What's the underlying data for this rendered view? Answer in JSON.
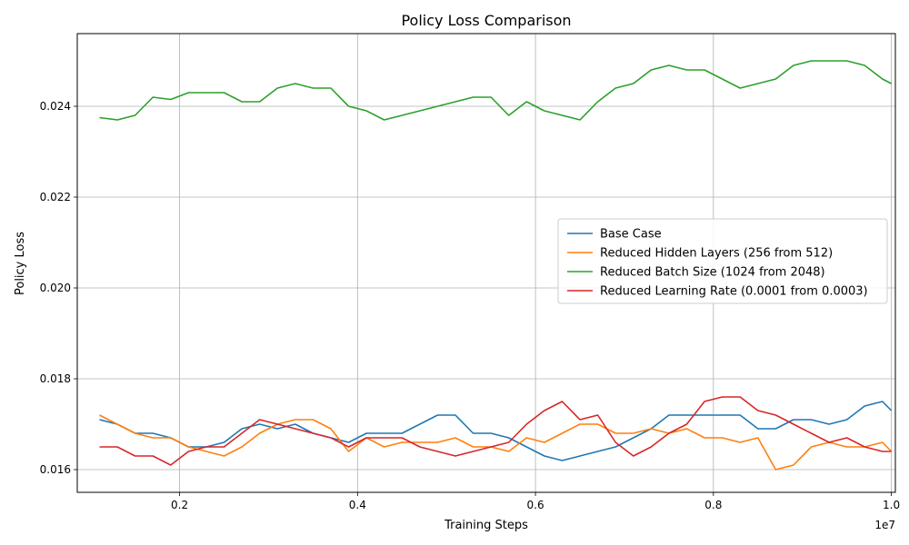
{
  "chart_data": {
    "type": "line",
    "title": "Policy Loss Comparison",
    "xlabel": "Training Steps",
    "ylabel": "Policy Loss",
    "x_offset_label": "1e7",
    "xlim": [
      0.085,
      1.0045
    ],
    "ylim": [
      0.0155,
      0.0256
    ],
    "x_ticks": [
      0.2,
      0.4,
      0.6,
      0.8,
      1.0
    ],
    "x_tick_labels": [
      "0.2",
      "0.4",
      "0.6",
      "0.8",
      "1.0"
    ],
    "y_ticks": [
      0.016,
      0.018,
      0.02,
      0.022,
      0.024
    ],
    "y_tick_labels": [
      "0.016",
      "0.018",
      "0.020",
      "0.022",
      "0.024"
    ],
    "grid": true,
    "legend_position": "center-right",
    "x": [
      0.11,
      0.13,
      0.15,
      0.17,
      0.19,
      0.21,
      0.23,
      0.25,
      0.27,
      0.29,
      0.31,
      0.33,
      0.35,
      0.37,
      0.39,
      0.41,
      0.43,
      0.45,
      0.47,
      0.49,
      0.51,
      0.53,
      0.55,
      0.57,
      0.59,
      0.61,
      0.63,
      0.65,
      0.67,
      0.69,
      0.71,
      0.73,
      0.75,
      0.77,
      0.79,
      0.81,
      0.83,
      0.85,
      0.87,
      0.89,
      0.91,
      0.93,
      0.95,
      0.97,
      0.99,
      1.0
    ],
    "series": [
      {
        "name": "Base Case",
        "color": "#1f77b4",
        "values": [
          0.0171,
          0.017,
          0.0168,
          0.0168,
          0.0167,
          0.0165,
          0.0165,
          0.0166,
          0.0169,
          0.017,
          0.0169,
          0.017,
          0.0168,
          0.0167,
          0.0166,
          0.0168,
          0.0168,
          0.0168,
          0.017,
          0.0172,
          0.0172,
          0.0168,
          0.0168,
          0.0167,
          0.0165,
          0.0163,
          0.0162,
          0.0163,
          0.0164,
          0.0165,
          0.0167,
          0.0169,
          0.0172,
          0.0172,
          0.0172,
          0.0172,
          0.0172,
          0.0169,
          0.0169,
          0.0171,
          0.0171,
          0.017,
          0.0171,
          0.0174,
          0.0175,
          0.0173
        ]
      },
      {
        "name": "Reduced Hidden Layers (256 from 512)",
        "color": "#ff7f0e",
        "values": [
          0.0172,
          0.017,
          0.0168,
          0.0167,
          0.0167,
          0.0165,
          0.0164,
          0.0163,
          0.0165,
          0.0168,
          0.017,
          0.0171,
          0.0171,
          0.0169,
          0.0164,
          0.0167,
          0.0165,
          0.0166,
          0.0166,
          0.0166,
          0.0167,
          0.0165,
          0.0165,
          0.0164,
          0.0167,
          0.0166,
          0.0168,
          0.017,
          0.017,
          0.0168,
          0.0168,
          0.0169,
          0.0168,
          0.0169,
          0.0167,
          0.0167,
          0.0166,
          0.0167,
          0.016,
          0.0161,
          0.0165,
          0.0166,
          0.0165,
          0.0165,
          0.0166,
          0.0164
        ]
      },
      {
        "name": "Reduced Batch Size (1024 from 2048)",
        "color": "#2ca02c",
        "values": [
          0.02375,
          0.0237,
          0.0238,
          0.0242,
          0.02415,
          0.0243,
          0.0243,
          0.0243,
          0.0241,
          0.0241,
          0.0244,
          0.0245,
          0.0244,
          0.0244,
          0.024,
          0.0239,
          0.0237,
          0.0238,
          0.0239,
          0.024,
          0.0241,
          0.0242,
          0.0242,
          0.0238,
          0.0241,
          0.0239,
          0.0238,
          0.0237,
          0.0241,
          0.0244,
          0.0245,
          0.0248,
          0.0249,
          0.0248,
          0.0248,
          0.0246,
          0.0244,
          0.0245,
          0.0246,
          0.0249,
          0.025,
          0.025,
          0.025,
          0.0249,
          0.0246,
          0.0245
        ]
      },
      {
        "name": "Reduced Learning Rate (0.0001 from 0.0003)",
        "color": "#d62728",
        "values": [
          0.0165,
          0.0165,
          0.0163,
          0.0163,
          0.0161,
          0.0164,
          0.0165,
          0.0165,
          0.0168,
          0.0171,
          0.017,
          0.0169,
          0.0168,
          0.0167,
          0.0165,
          0.0167,
          0.0167,
          0.0167,
          0.0165,
          0.0164,
          0.0163,
          0.0164,
          0.0165,
          0.0166,
          0.017,
          0.0173,
          0.0175,
          0.0171,
          0.0172,
          0.0166,
          0.0163,
          0.0165,
          0.0168,
          0.017,
          0.0175,
          0.0176,
          0.0176,
          0.0173,
          0.0172,
          0.017,
          0.0168,
          0.0166,
          0.0167,
          0.0165,
          0.0164,
          0.0164
        ]
      }
    ]
  }
}
